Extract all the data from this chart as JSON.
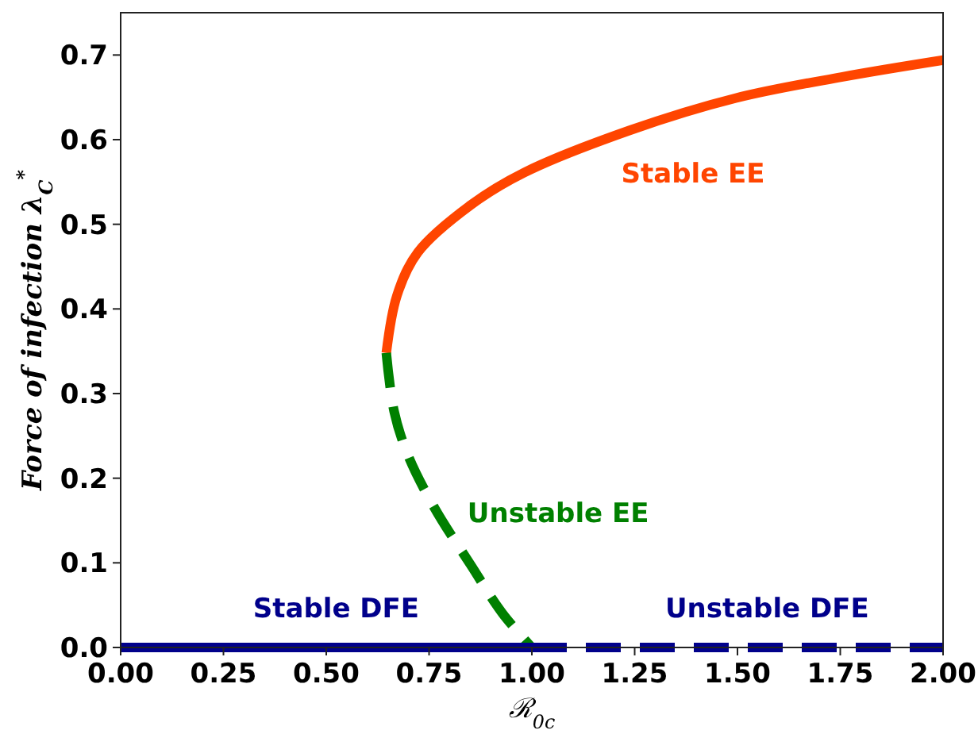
{
  "chart_data": {
    "type": "line",
    "xlabel": "ℛ$_{0c}$",
    "ylabel": "Force of infection λ$_{C}$$^{*}$",
    "xlim": [
      0,
      2
    ],
    "ylim": [
      0,
      0.75
    ],
    "xticks": [
      {
        "value": 0,
        "label": "0.00"
      },
      0.25,
      {
        "value": 0.5,
        "label": "0.50"
      },
      0.75,
      {
        "value": 1,
        "label": "1.00"
      },
      1.25,
      {
        "value": 1.5,
        "label": "1.50"
      },
      1.75,
      {
        "value": 2,
        "label": "2.00"
      }
    ],
    "yticks": [
      {
        "value": 0,
        "label": "0.0"
      },
      0.1,
      0.2,
      0.3,
      0.4,
      0.5,
      0.6,
      0.7
    ],
    "grid": false,
    "marker": "none",
    "series": [
      {
        "name": "Stable EE",
        "color": "#ff4500",
        "line_style": "solid",
        "x": [
          0.646,
          0.672,
          0.723,
          0.852,
          0.981,
          1.238,
          1.495,
          1.753,
          2.0
        ],
        "values": [
          0.348,
          0.416,
          0.467,
          0.523,
          0.561,
          0.611,
          0.649,
          0.674,
          0.694
        ]
      },
      {
        "name": "Unstable EE",
        "color": "#008000",
        "line_style": "dashed",
        "x": [
          0.646,
          0.665,
          0.698,
          0.762,
          0.852,
          0.929,
          1.0
        ],
        "values": [
          0.348,
          0.279,
          0.228,
          0.166,
          0.097,
          0.04,
          0
        ]
      },
      {
        "name": "Stable DFE",
        "color": "#00008b",
        "line_style": "solid",
        "x": [
          0,
          1
        ],
        "values": [
          0,
          0
        ]
      },
      {
        "name": "Unstable DFE",
        "color": "#00008b",
        "line_style": "dashed",
        "x": [
          1,
          2
        ],
        "values": [
          0,
          0
        ]
      }
    ]
  }
}
